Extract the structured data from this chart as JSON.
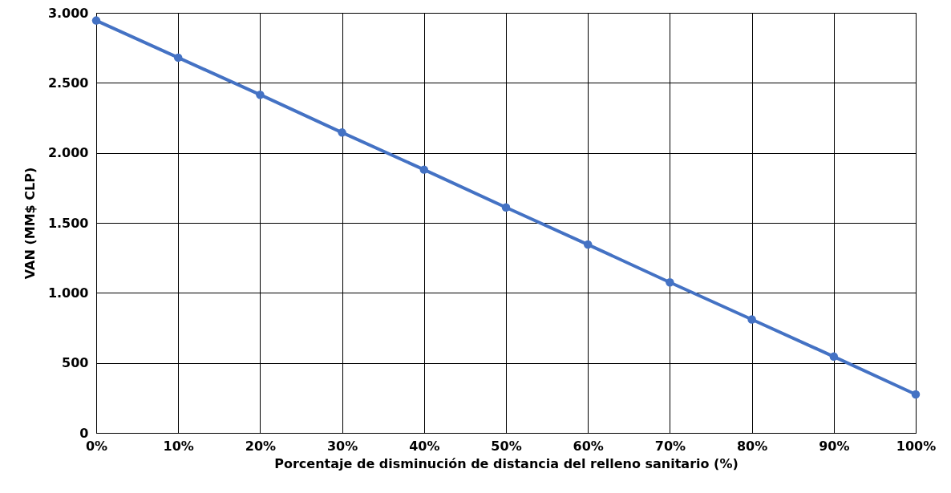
{
  "chart_data": {
    "type": "line",
    "xlabel": "Porcentaje de disminución de distancia del relleno sanitario (%)",
    "ylabel": "VAN (MM$ CLP)",
    "categories": [
      "0%",
      "10%",
      "20%",
      "30%",
      "40%",
      "50%",
      "60%",
      "70%",
      "80%",
      "90%",
      "100%"
    ],
    "series": [
      {
        "color": "#4472c4",
        "values": [
          2945,
          2680,
          2415,
          2145,
          1880,
          1610,
          1345,
          1075,
          810,
          545,
          275
        ]
      }
    ],
    "ylim": [
      0,
      3000
    ],
    "yticks": [
      0,
      500,
      {
        "value": 1000,
        "label": "1.000"
      },
      {
        "value": 1500,
        "label": "1.500"
      },
      {
        "value": 2000,
        "label": "2.000"
      },
      {
        "value": 2500,
        "label": "2.500"
      },
      {
        "value": 3000,
        "label": "3.000"
      }
    ],
    "grid": true,
    "marker": "circle",
    "line_style": "solid"
  }
}
